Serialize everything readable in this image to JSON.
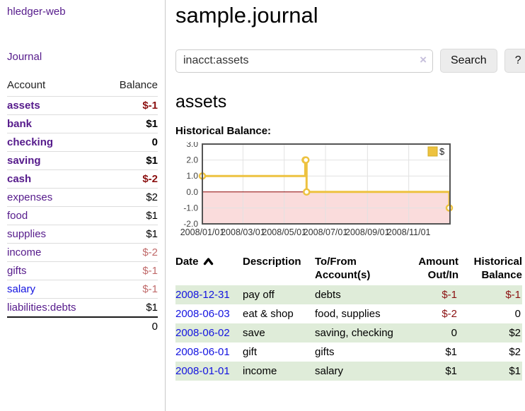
{
  "app_title": "hledger-web",
  "sidebar": {
    "journal_label": "Journal",
    "accounts": {
      "headers": [
        "Account",
        "Balance"
      ],
      "rows": [
        {
          "account": "assets",
          "balance": "$-1",
          "level": 1,
          "bold": true,
          "balance_style": "neg"
        },
        {
          "account": "bank",
          "balance": "$1",
          "level": 2,
          "bold": true,
          "balance_style": "pos"
        },
        {
          "account": "checking",
          "balance": "0",
          "level": 3,
          "bold": true,
          "balance_style": "pos"
        },
        {
          "account": "saving",
          "balance": "$1",
          "level": 3,
          "bold": true,
          "balance_style": "pos"
        },
        {
          "account": "cash",
          "balance": "$-2",
          "level": 2,
          "bold": true,
          "balance_style": "neg"
        },
        {
          "account": "expenses",
          "balance": "$2",
          "level": 1,
          "bold": false,
          "balance_style": "pos"
        },
        {
          "account": "food",
          "balance": "$1",
          "level": 2,
          "bold": false,
          "balance_style": "pos"
        },
        {
          "account": "supplies",
          "balance": "$1",
          "level": 2,
          "bold": false,
          "balance_style": "pos"
        },
        {
          "account": "income",
          "balance": "$-2",
          "level": 1,
          "bold": false,
          "balance_style": "neg-light"
        },
        {
          "account": "gifts",
          "balance": "$-1",
          "level": 2,
          "bold": false,
          "balance_style": "neg-light"
        },
        {
          "account": "salary",
          "balance": "$-1",
          "level": 2,
          "bold": false,
          "balance_style": "neg-light",
          "link_style": "blue"
        },
        {
          "account": "liabilities:debts",
          "balance": "$1",
          "level": 1,
          "bold": false,
          "balance_style": "pos"
        }
      ],
      "total": "0"
    }
  },
  "main": {
    "title": "sample.journal",
    "search": {
      "value": "inacct:assets",
      "clear_icon": "×",
      "button_label": "Search",
      "help_label": "?"
    },
    "account_heading": "assets",
    "chart_heading": "Historical Balance:"
  },
  "chart_data": {
    "type": "line",
    "step": true,
    "title": "Historical Balance:",
    "series": [
      {
        "name": "$",
        "color": "#edc240",
        "points": [
          [
            "2008-01-01",
            1
          ],
          [
            "2008-06-01",
            2
          ],
          [
            "2008-06-02",
            2
          ],
          [
            "2008-06-03",
            0
          ],
          [
            "2008-12-31",
            -1
          ]
        ]
      }
    ],
    "xlim": [
      "2008-01-01",
      "2009-01-01"
    ],
    "ylim": [
      -2,
      3
    ],
    "xticks": [
      "2008/01/01",
      "2008/03/01",
      "2008/05/01",
      "2008/07/01",
      "2008/09/01",
      "2008/11/01"
    ],
    "yticks": [
      -2,
      -1,
      0,
      1,
      2,
      3
    ],
    "legend": {
      "label": "$",
      "position": "top-right"
    },
    "grid": true,
    "below_zero_fill": "#fadcdc",
    "zero_line_color": "#8b0000",
    "border_color": "#545454",
    "gridline_color": "#e2e2e2"
  },
  "register": {
    "headers": [
      "Date",
      "Description",
      "To/From Account(s)",
      "Amount Out/In",
      "Historical Balance"
    ],
    "rows": [
      {
        "date": "2008-12-31",
        "description": "pay off",
        "accounts": "debts",
        "amount": "$-1",
        "balance": "$-1",
        "amount_negative": true,
        "balance_negative": true,
        "striped": true
      },
      {
        "date": "2008-06-03",
        "description": "eat & shop",
        "accounts": "food, supplies",
        "amount": "$-2",
        "balance": "0",
        "amount_negative": true,
        "balance_negative": false,
        "striped": false
      },
      {
        "date": "2008-06-02",
        "description": "save",
        "accounts": "saving, checking",
        "amount": "0",
        "balance": "$2",
        "amount_negative": false,
        "balance_negative": false,
        "striped": true
      },
      {
        "date": "2008-06-01",
        "description": "gift",
        "accounts": "gifts",
        "amount": "$1",
        "balance": "$2",
        "amount_negative": false,
        "balance_negative": false,
        "striped": false
      },
      {
        "date": "2008-01-01",
        "description": "income",
        "accounts": "salary",
        "amount": "$1",
        "balance": "$1",
        "amount_negative": false,
        "balance_negative": false,
        "striped": true
      }
    ]
  },
  "colors": {
    "link_purple": "#551a8b",
    "link_blue": "#1313e0",
    "negative": "#8b1010",
    "negative_light": "#c06a6a",
    "row_stripe_green": "#dfecd9",
    "chart_series_gold": "#edc240"
  }
}
